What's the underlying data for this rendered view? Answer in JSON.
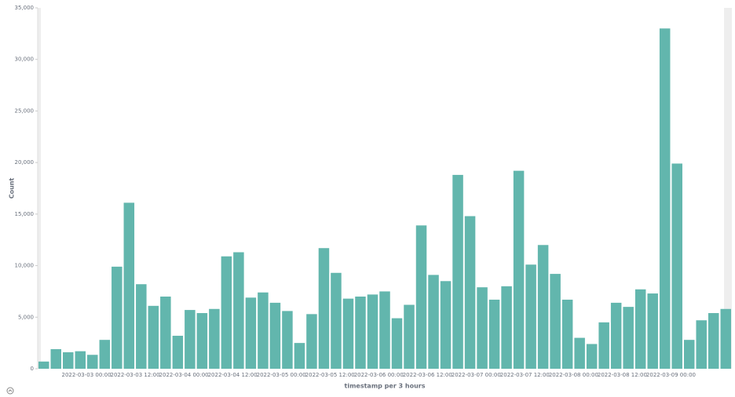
{
  "chart_data": {
    "type": "bar",
    "x_label": "timestamp per 3 hours",
    "y_label": "Count",
    "categories": [
      null,
      null,
      null,
      null,
      "2022-03-03 00:00",
      null,
      null,
      null,
      "2022-03-03 12:00",
      null,
      null,
      null,
      "2022-03-04 00:00",
      null,
      null,
      null,
      "2022-03-04 12:00",
      null,
      null,
      null,
      "2022-03-05 00:00",
      null,
      null,
      null,
      "2022-03-05 12:00",
      null,
      null,
      null,
      "2022-03-06 00:00",
      null,
      null,
      null,
      "2022-03-06 12:00",
      null,
      null,
      null,
      "2022-03-07 00:00",
      null,
      null,
      null,
      "2022-03-07 12:00",
      null,
      null,
      null,
      "2022-03-08 00:00",
      null,
      null,
      null,
      "2022-03-08 12:00",
      null,
      null,
      null,
      "2022-03-09 00:00",
      null,
      null,
      null,
      null
    ],
    "values": [
      700,
      1900,
      1600,
      1700,
      1350,
      2800,
      9900,
      16100,
      8200,
      6100,
      7000,
      3200,
      5700,
      5400,
      5800,
      10900,
      11300,
      6900,
      7400,
      6400,
      5600,
      2500,
      5300,
      11700,
      9300,
      6800,
      7000,
      7200,
      7500,
      4900,
      6200,
      13900,
      9100,
      8500,
      18800,
      14800,
      7900,
      6700,
      8000,
      19200,
      10100,
      12000,
      9200,
      6700,
      3000,
      2400,
      4500,
      6400,
      6000,
      7700,
      7300,
      33000,
      19900,
      2800,
      4700,
      5400,
      5800
    ],
    "color": "#62b6ad",
    "ylim": [
      0,
      35000
    ],
    "yticks": [
      0,
      {
        "value": 5000,
        "label": "5,000"
      },
      {
        "value": 10000,
        "label": "10,000"
      },
      {
        "value": 15000,
        "label": "15,000"
      },
      {
        "value": 20000,
        "label": "20,000"
      },
      {
        "value": 25000,
        "label": "25,000"
      },
      {
        "value": 30000,
        "label": "30,000"
      },
      {
        "value": 35000,
        "label": "35,000"
      }
    ]
  }
}
